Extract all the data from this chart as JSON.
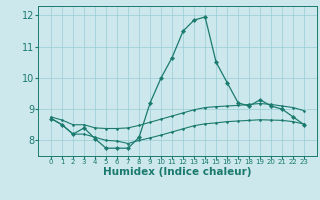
{
  "xlabel": "Humidex (Indice chaleur)",
  "background_color": "#cce8ec",
  "grid_color": "#99ccd4",
  "line_color": "#1a7a6e",
  "x": [
    0,
    1,
    2,
    3,
    4,
    5,
    6,
    7,
    8,
    9,
    10,
    11,
    12,
    13,
    14,
    15,
    16,
    17,
    18,
    19,
    20,
    21,
    22,
    23
  ],
  "y_main": [
    8.7,
    8.5,
    8.2,
    8.4,
    8.05,
    7.75,
    7.75,
    7.75,
    8.1,
    9.2,
    10.0,
    10.65,
    11.5,
    11.85,
    11.95,
    10.5,
    9.85,
    9.2,
    9.1,
    9.3,
    9.1,
    9.0,
    8.75,
    8.5
  ],
  "y_upper": [
    8.75,
    8.65,
    8.5,
    8.5,
    8.4,
    8.38,
    8.38,
    8.4,
    8.48,
    8.58,
    8.68,
    8.78,
    8.88,
    8.98,
    9.05,
    9.08,
    9.1,
    9.12,
    9.15,
    9.18,
    9.15,
    9.1,
    9.05,
    8.95
  ],
  "y_lower": [
    8.7,
    8.5,
    8.2,
    8.2,
    8.1,
    8.0,
    7.98,
    7.9,
    8.0,
    8.08,
    8.17,
    8.27,
    8.37,
    8.47,
    8.53,
    8.56,
    8.6,
    8.62,
    8.64,
    8.66,
    8.65,
    8.64,
    8.6,
    8.52
  ],
  "ylim": [
    7.5,
    12.3
  ],
  "yticks": [
    8,
    9,
    10,
    11,
    12
  ],
  "xticks": [
    0,
    1,
    2,
    3,
    4,
    5,
    6,
    7,
    8,
    9,
    10,
    11,
    12,
    13,
    14,
    15,
    16,
    17,
    18,
    19,
    20,
    21,
    22,
    23
  ]
}
